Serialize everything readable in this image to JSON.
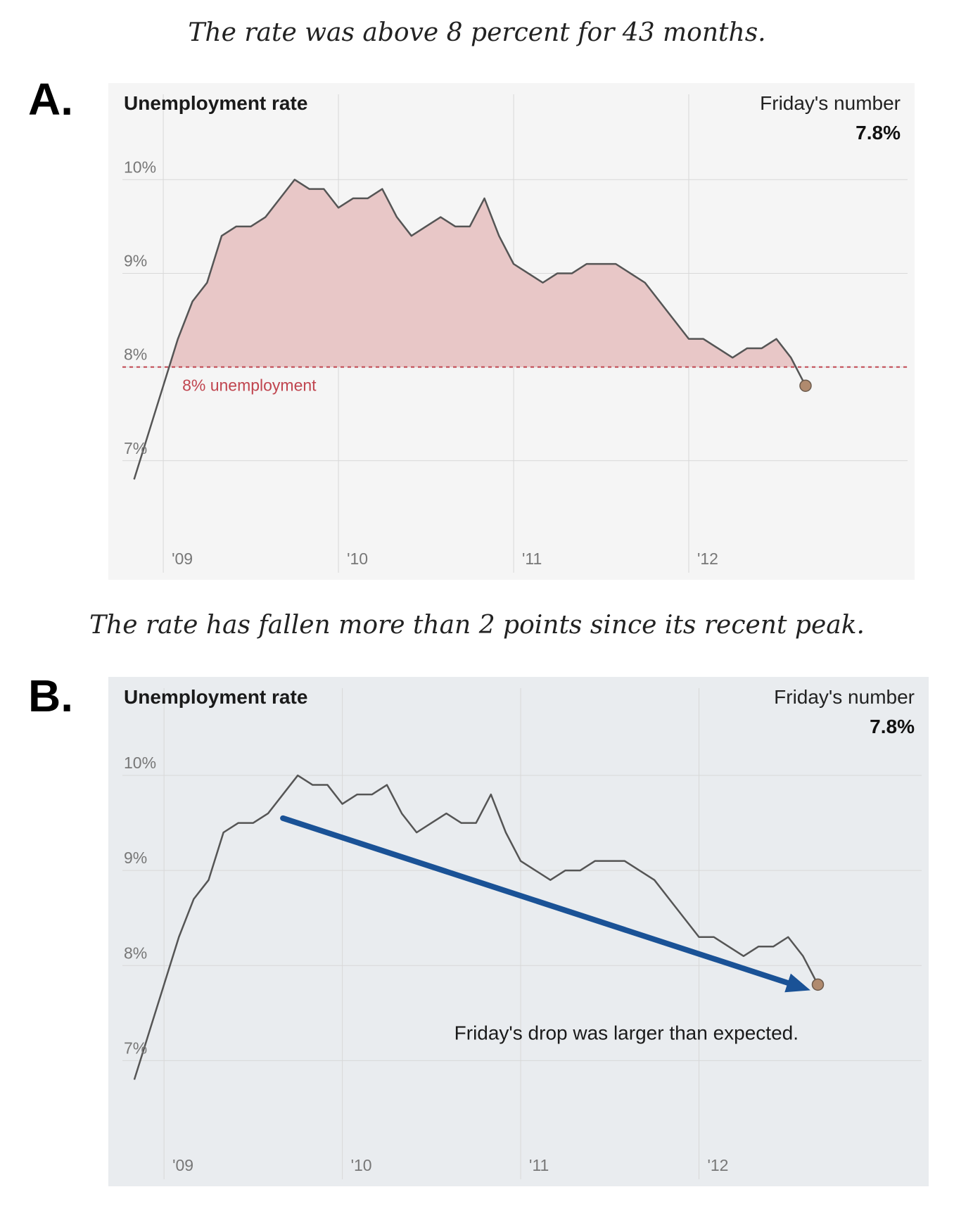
{
  "captions": {
    "a": "The rate was above 8 percent for 43 months.",
    "b": "The rate has fallen more than 2 points since its recent peak."
  },
  "colors": {
    "panel_a_bg": "#f5f5f5",
    "panel_b_bg": "#e9ecef",
    "line": "#555555",
    "fill_above_8": "#e8c7c7",
    "reference_line": "#c0454f",
    "end_marker": "#b08a6e",
    "arrow": "#1a5296",
    "grid": "#d8d8d8"
  },
  "chart_data": [
    {
      "panel_letter": "A.",
      "type": "area",
      "title": "Unemployment rate",
      "friday_label": "Friday's number",
      "friday_value": "7.8%",
      "xlabel": "",
      "ylabel": "",
      "ylim": [
        6.3,
        10.4
      ],
      "y_ticks": [
        {
          "value": 10,
          "label": "10%"
        },
        {
          "value": 9,
          "label": "9%"
        },
        {
          "value": 8,
          "label": "8%"
        },
        {
          "value": 7,
          "label": "7%"
        }
      ],
      "x_ticks": [
        {
          "value": 24,
          "label": "'09"
        },
        {
          "value": 36,
          "label": "'10"
        },
        {
          "value": 48,
          "label": "'11"
        },
        {
          "value": 60,
          "label": "'12"
        }
      ],
      "xlim": [
        21.2,
        74.7
      ],
      "x_start": 22,
      "values": [
        6.8,
        7.3,
        7.8,
        8.3,
        8.7,
        8.9,
        9.4,
        9.5,
        9.5,
        9.6,
        9.8,
        10.0,
        9.9,
        9.9,
        9.7,
        9.8,
        9.8,
        9.9,
        9.6,
        9.4,
        9.5,
        9.6,
        9.5,
        9.5,
        9.8,
        9.4,
        9.1,
        9.0,
        8.9,
        9.0,
        9.0,
        9.1,
        9.1,
        9.1,
        9.0,
        8.9,
        8.7,
        8.5,
        8.3,
        8.3,
        8.2,
        8.1,
        8.2,
        8.2,
        8.3,
        8.1,
        7.8
      ],
      "reference": {
        "value": 8,
        "label": "8% unemployment"
      },
      "fill_above_reference": true
    },
    {
      "panel_letter": "B.",
      "type": "line",
      "title": "Unemployment rate",
      "friday_label": "Friday's number",
      "friday_value": "7.8%",
      "xlabel": "",
      "ylabel": "",
      "ylim": [
        6.3,
        10.4
      ],
      "y_ticks": [
        {
          "value": 10,
          "label": "10%"
        },
        {
          "value": 9,
          "label": "9%"
        },
        {
          "value": 8,
          "label": "8%"
        },
        {
          "value": 7,
          "label": "7%"
        }
      ],
      "x_ticks": [
        {
          "value": 24,
          "label": "'09"
        },
        {
          "value": 36,
          "label": "'10"
        },
        {
          "value": 48,
          "label": "'11"
        },
        {
          "value": 60,
          "label": "'12"
        }
      ],
      "xlim": [
        21.2,
        74.7
      ],
      "x_start": 22,
      "values": [
        6.8,
        7.3,
        7.8,
        8.3,
        8.7,
        8.9,
        9.4,
        9.5,
        9.5,
        9.6,
        9.8,
        10.0,
        9.9,
        9.9,
        9.7,
        9.8,
        9.8,
        9.9,
        9.6,
        9.4,
        9.5,
        9.6,
        9.5,
        9.5,
        9.8,
        9.4,
        9.1,
        9.0,
        8.9,
        9.0,
        9.0,
        9.1,
        9.1,
        9.1,
        9.0,
        8.9,
        8.7,
        8.5,
        8.3,
        8.3,
        8.2,
        8.1,
        8.2,
        8.2,
        8.3,
        8.1,
        7.8
      ],
      "arrow": {
        "from": [
          32,
          9.55
        ],
        "to": [
          67.5,
          7.74
        ]
      },
      "annotation": "Friday's drop was larger than expected."
    }
  ]
}
